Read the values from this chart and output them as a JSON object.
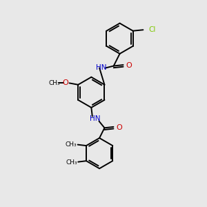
{
  "background_color": "#e8e8e8",
  "bond_color": "#000000",
  "N_color": "#0000cc",
  "O_color": "#cc0000",
  "Cl_color": "#7ec800",
  "figsize": [
    3.0,
    3.0
  ],
  "dpi": 100,
  "xlim": [
    0,
    10
  ],
  "ylim": [
    0,
    10
  ]
}
